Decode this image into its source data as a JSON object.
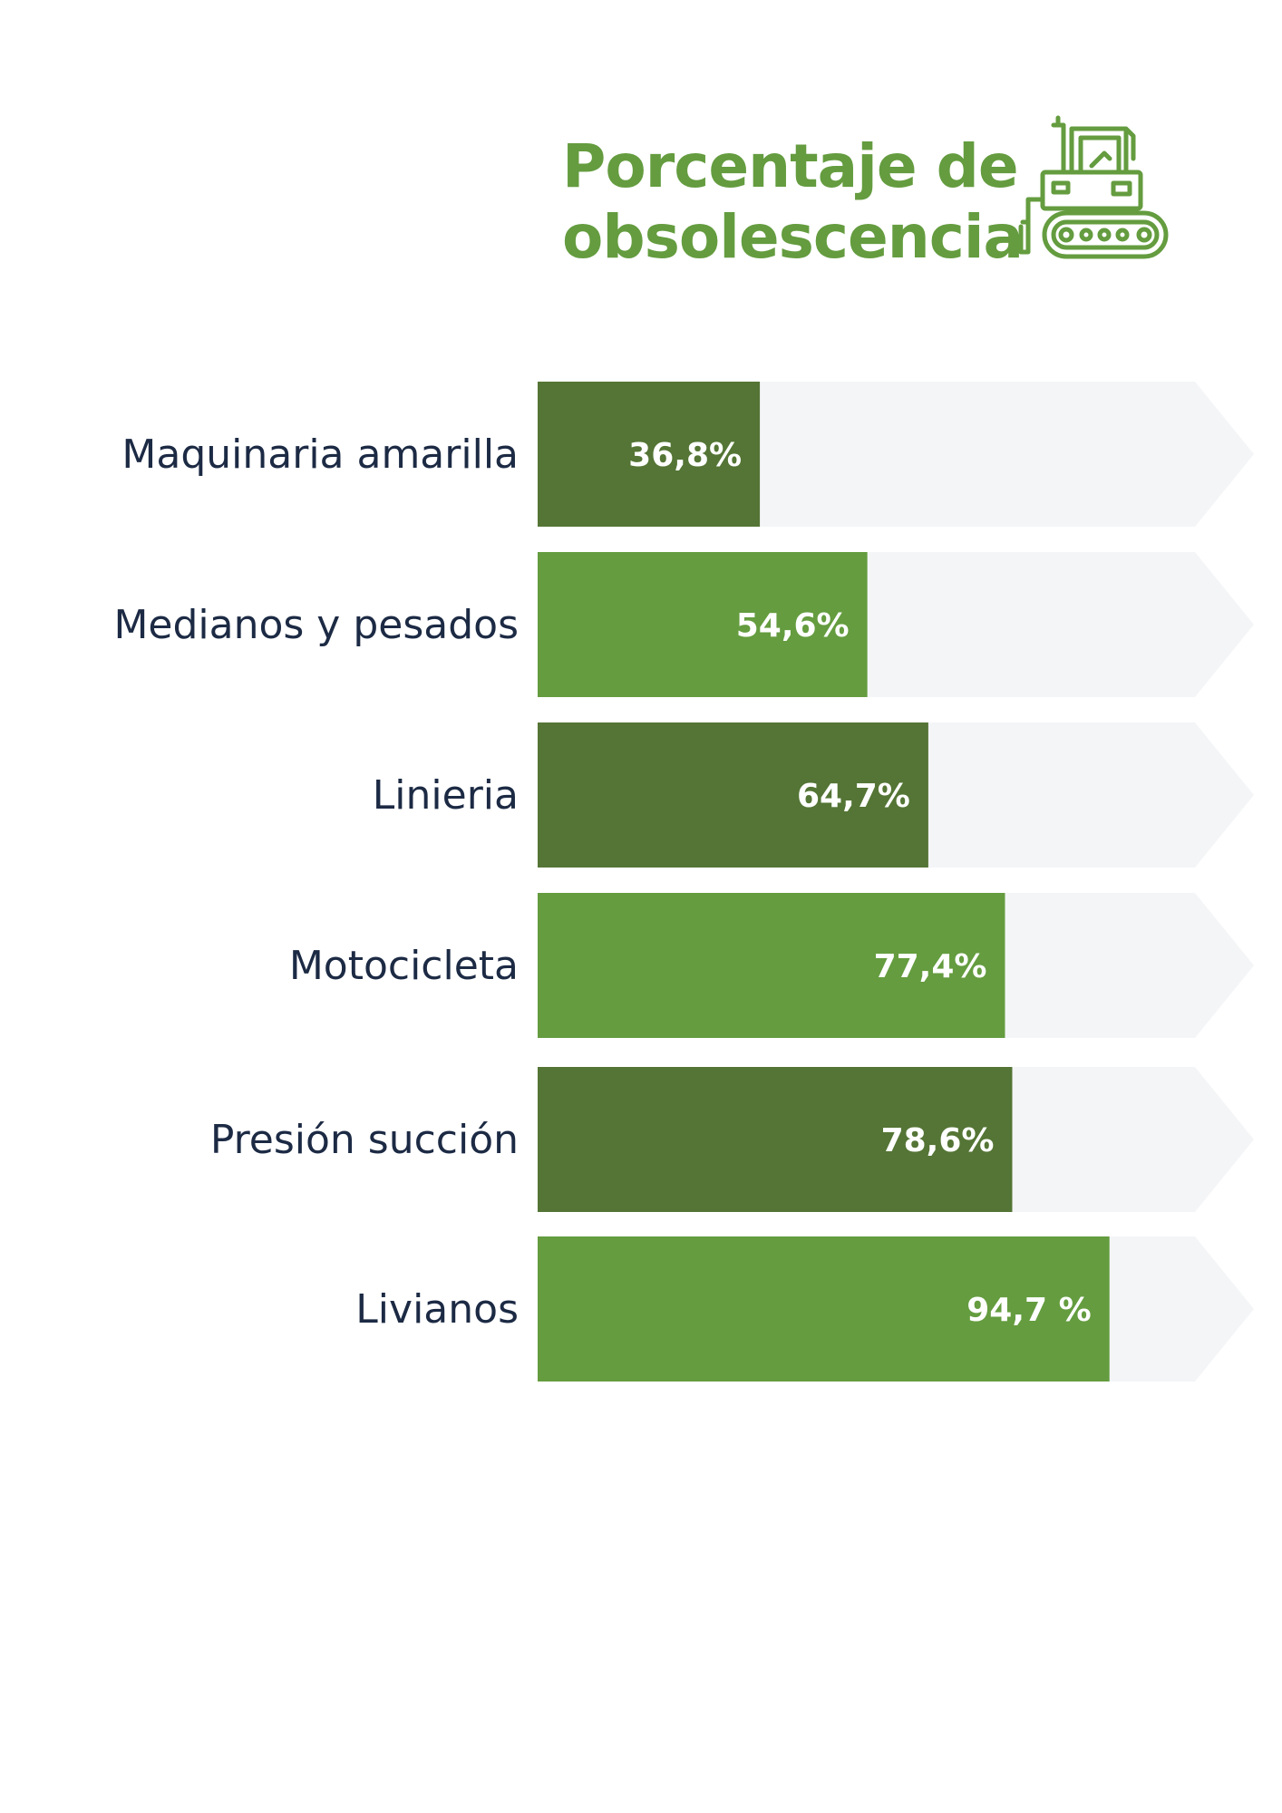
{
  "title": {
    "line1": "Porcentaje de",
    "line2": "obsolescencia"
  },
  "icon": "bulldozer-icon",
  "colors": {
    "title": "#649c3f",
    "bar_dark": "#547535",
    "bar_light": "#649c3f",
    "track": "#f4f5f7",
    "category_text": "#1c2a44",
    "value_text": "#ffffff"
  },
  "chart_data": {
    "type": "bar",
    "orientation": "horizontal",
    "categories": [
      "Maquinaria amarilla",
      "Medianos y pesados",
      "Linieria",
      "Motocicleta",
      "Presión succión",
      "Livianos"
    ],
    "values": [
      36.8,
      54.6,
      64.7,
      77.4,
      78.6,
      94.7
    ],
    "value_labels": [
      "36,8%",
      "54,6%",
      "64,7%",
      "77,4%",
      "78,6%",
      "94,7 %"
    ],
    "bar_colors": [
      "#547535",
      "#649c3f",
      "#547535",
      "#649c3f",
      "#547535",
      "#649c3f"
    ],
    "xlim": [
      0,
      100
    ],
    "grid": false,
    "legend": "none"
  }
}
